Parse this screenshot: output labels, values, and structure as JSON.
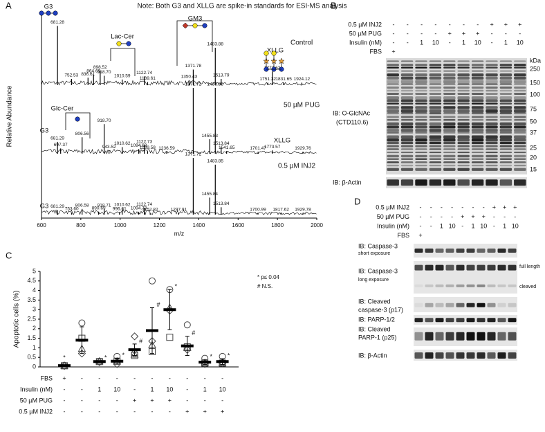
{
  "panel_labels": [
    "A",
    "B",
    "C",
    "D"
  ],
  "chart_data": [
    {
      "type": "spectrum",
      "note": "Note: Both G3 and XLLG are spike-in standards for ESI-MS analysis",
      "xlabel": "m/z",
      "ylabel": "Relative Abundance",
      "xlim": [
        600,
        2000
      ],
      "xticks": [
        600,
        800,
        1000,
        1200,
        1400,
        1600,
        1800,
        2000
      ],
      "annotations": [
        "G3",
        "Lac-Cer",
        "GM3",
        "XLLG",
        "Glc-Cer",
        "G3",
        "XLLG",
        "G3"
      ],
      "series": [
        {
          "name": "Control",
          "x": [
            681.28,
            752.53,
            836.61,
            864.69,
            898.52,
            918.7,
            1010.59,
            1122.74,
            1139.61,
            1350.43,
            1371.78,
            1483.88,
            1513.79,
            1751.32,
            1773.62,
            1831.65,
            1924.12
          ],
          "x_labels": [
            "681.28",
            "752.53",
            "836.61",
            "864.69",
            "898.52",
            "918.70",
            "1010.59",
            "1122.74",
            "1139.61",
            "1350.43",
            "1371.78",
            "1483.88",
            "1513.79",
            "1751.32",
            "1773.62",
            "1831.65",
            "1924.12"
          ],
          "values": [
            95,
            10,
            12,
            17,
            23,
            15,
            9,
            14,
            5,
            8,
            25,
            60,
            10,
            4,
            22,
            4,
            4
          ]
        },
        {
          "name": "50 µM PUG",
          "x": [
            681.29,
            697.37,
            806.56,
            918.7,
            943.52,
            1010.62,
            1094.68,
            1122.73,
            1139.58,
            1236.59,
            1371.72,
            1455.83,
            1483.85,
            1513.84,
            1541.65,
            1701.47,
            1773.57,
            1929.76
          ],
          "x_labels": [
            "681.29",
            "697.37",
            "806.56",
            "918.70",
            "943.52",
            "1010.62",
            "1094.68",
            "1122.73",
            "1139.58",
            "1236.59",
            "1371.72",
            "1455.83",
            "1483.85",
            "1513.84",
            "1541.65",
            "1701.47",
            "1773.57",
            "1929.76"
          ],
          "values": [
            18,
            8,
            25,
            45,
            5,
            10,
            7,
            13,
            4,
            3,
            100,
            22,
            100,
            10,
            4,
            3,
            5,
            3
          ]
        },
        {
          "name": "0.5 µM INJ2",
          "x": [
            681.29,
            753.6,
            806.58,
            890.69,
            918.71,
            996.61,
            1010.62,
            1094.73,
            1122.74,
            1152.82,
            1297.91,
            1371.72,
            1455.84,
            1483.85,
            1513.84,
            1700.99,
            1817.62,
            1929.78
          ],
          "x_labels": [
            "681.29",
            "753.60",
            "806.58",
            "890.69",
            "918.71",
            "996.61",
            "1010.62",
            "1094.73",
            "1122.74",
            "1152.82",
            "1297.91",
            "1371.72",
            "1455.84",
            "1483.85",
            "1513.84",
            "1700.99",
            "1817.62",
            "1929.78"
          ],
          "values": [
            8,
            4,
            10,
            5,
            10,
            4,
            11,
            5,
            12,
            3,
            3,
            100,
            30,
            88,
            13,
            3,
            3,
            3
          ]
        }
      ]
    },
    {
      "type": "scatter",
      "ylabel": "Apoptotic cells (%)",
      "ylim": [
        0,
        5
      ],
      "yticks": [
        0,
        0.5,
        1,
        1.5,
        2,
        2.5,
        3,
        3.5,
        4,
        4.5,
        5
      ],
      "legend_notes": [
        "* p≤ 0.04",
        "# N.S."
      ],
      "series": [
        {
          "marker": "circle",
          "values": [
            0.08,
            2.3,
            0.3,
            0.55,
            0.7,
            4.5,
            4.05,
            2.2,
            0.45,
            0.55
          ]
        },
        {
          "marker": "square",
          "values": [
            0.06,
            1.5,
            0.28,
            0.3,
            0.6,
            0.8,
            1.55,
            1.05,
            0.2,
            0.2
          ]
        },
        {
          "marker": "triangle",
          "values": [
            0.07,
            0.95,
            0.3,
            0.3,
            0.65,
            1.15,
            3.1,
            1.0,
            0.22,
            0.22
          ]
        },
        {
          "marker": "diamond",
          "values": [
            0.05,
            0.7,
            0.25,
            0.15,
            1.6,
            1.35,
            2.95,
            0.9,
            0.15,
            0.2
          ]
        }
      ],
      "means": [
        0.07,
        1.4,
        0.28,
        0.3,
        0.9,
        1.9,
        3.0,
        1.1,
        0.25,
        0.28
      ],
      "errors": [
        0.03,
        0.7,
        0.05,
        0.15,
        0.3,
        1.2,
        1.05,
        0.5,
        0.12,
        0.15
      ],
      "significance": [
        "*",
        null,
        "*",
        "*",
        "#",
        "#",
        "*",
        "#",
        "*",
        "*"
      ],
      "conditions": [
        {
          "label": "FBS",
          "lanes": [
            "+",
            "-",
            "-",
            "-",
            "-",
            "-",
            "-",
            "-",
            "-",
            "-"
          ]
        },
        {
          "label": "Insulin (nM)",
          "lanes": [
            "-",
            "-",
            "1",
            "10",
            "-",
            "1",
            "10",
            "-",
            "1",
            "10"
          ]
        },
        {
          "label": "50 µM PUG",
          "lanes": [
            "-",
            "-",
            "-",
            "-",
            "+",
            "+",
            "+",
            "-",
            "-",
            "-"
          ]
        },
        {
          "label": "0.5 µM INJ2",
          "lanes": [
            "-",
            "-",
            "-",
            "-",
            "-",
            "-",
            "-",
            "+",
            "+",
            "+"
          ]
        }
      ]
    }
  ],
  "blot_b": {
    "rows": [
      {
        "label": "0.5 µM INJ2",
        "lanes": [
          "-",
          "-",
          "-",
          "-",
          "-",
          "-",
          "-",
          "+",
          "+",
          "+"
        ]
      },
      {
        "label": "50 µM PUG",
        "lanes": [
          "-",
          "-",
          "-",
          "-",
          "+",
          "+",
          "+",
          "-",
          "-",
          "-"
        ]
      },
      {
        "label": "Insulin (nM)",
        "lanes": [
          "-",
          "-",
          "1",
          "10",
          "-",
          "1",
          "10",
          "-",
          "1",
          "10"
        ]
      },
      {
        "label": "FBS",
        "lanes": [
          "+",
          null,
          null,
          null,
          null,
          null,
          null,
          null,
          null,
          null
        ]
      }
    ],
    "marker_unit": "kDa",
    "markers": [
      250,
      150,
      100,
      75,
      50,
      37,
      25,
      20,
      15
    ],
    "blots": [
      {
        "label": [
          "IB: O-GlcNAc",
          "(CTD110.6)"
        ]
      },
      {
        "label": [
          "IB: β-Actin"
        ]
      }
    ]
  },
  "blot_d": {
    "rows": [
      {
        "label": "0.5 µM INJ2",
        "lanes": [
          "-",
          "-",
          "-",
          "-",
          "-",
          "-",
          "-",
          "+",
          "+",
          "+"
        ]
      },
      {
        "label": "50 µM PUG",
        "lanes": [
          "-",
          "-",
          "-",
          "-",
          "+",
          "+",
          "+",
          "-",
          "-",
          "-"
        ]
      },
      {
        "label": "Insulin (nM)",
        "lanes": [
          "-",
          "-",
          "1",
          "10",
          "-",
          "1",
          "10",
          "-",
          "1",
          "10"
        ]
      },
      {
        "label": "FBS",
        "lanes": [
          "+",
          null,
          null,
          null,
          null,
          null,
          null,
          null,
          null,
          null
        ]
      }
    ],
    "blots": [
      {
        "label": [
          "IB: Caspase-3",
          "short exposure"
        ]
      },
      {
        "label": [
          "IB: Caspase-3",
          "long exposure"
        ],
        "side_labels": [
          "full length",
          "cleaved"
        ]
      },
      {
        "label": [
          "IB: Cleaved",
          "caspase-3 (p17)"
        ]
      },
      {
        "label": [
          "IB: PARP-1/2"
        ]
      },
      {
        "label": [
          "IB: Cleaved",
          "PARP-1 (p25)"
        ]
      },
      {
        "label": [
          "IB: β-Actin"
        ]
      }
    ]
  }
}
